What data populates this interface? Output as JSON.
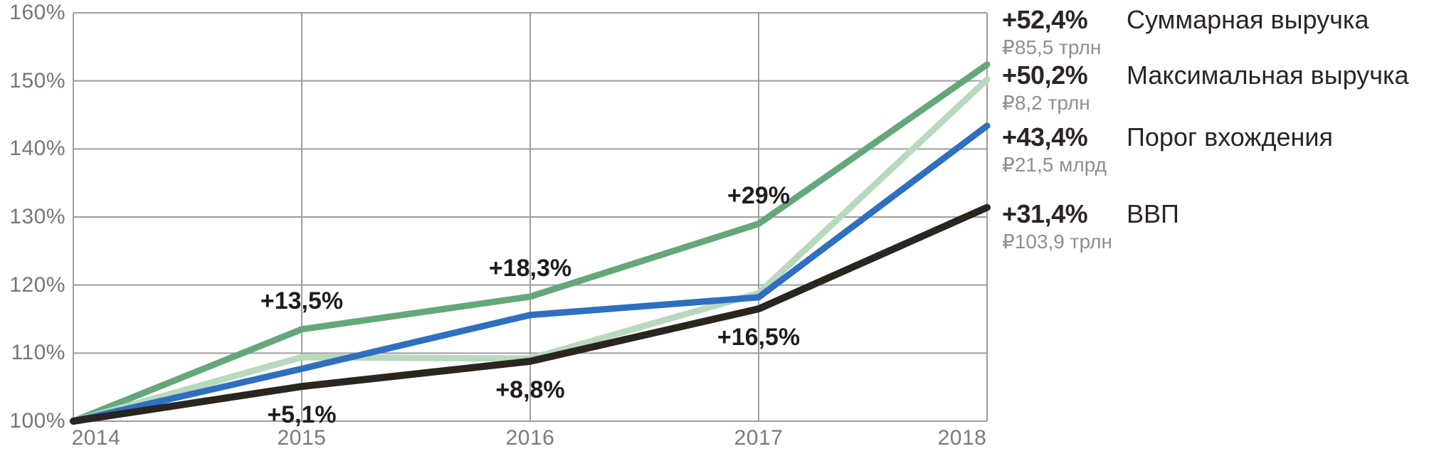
{
  "chart_data": {
    "type": "line",
    "x_labels": [
      "2014",
      "2015",
      "2016",
      "2017",
      "2018"
    ],
    "y_ticks": [
      "160%",
      "150%",
      "140%",
      "130%",
      "120%",
      "110%",
      "100%"
    ],
    "ylim": [
      100,
      160
    ],
    "grid": true,
    "legend_position": "right",
    "grid_color": "#9e9e9e",
    "series": [
      {
        "name": "Суммарная выручка",
        "color": "#64a77b",
        "values": [
          100,
          113.5,
          118.3,
          129,
          152.4
        ],
        "final_change": "+52,4%",
        "final_value": "₽85,5 трлн"
      },
      {
        "name": "Максимальная выручка",
        "color": "#b8d9be",
        "values": [
          100,
          109.4,
          109.2,
          118.8,
          150.2
        ],
        "final_change": "+50,2%",
        "final_value": "₽8,2 трлн"
      },
      {
        "name": "Порог вхождения",
        "color": "#2e6fc0",
        "values": [
          100,
          107.7,
          115.6,
          118.2,
          143.4
        ],
        "final_change": "+43,4%",
        "final_value": "₽21,5 млрд"
      },
      {
        "name": "ВВП",
        "color": "#2b2520",
        "values": [
          100,
          105.1,
          108.8,
          116.5,
          131.4
        ],
        "final_change": "+31,4%",
        "final_value": "₽103,9 трлн"
      }
    ],
    "annotations": [
      {
        "label": "+13,5%",
        "year": "2015",
        "series": "Суммарная выручка",
        "value": 113.5,
        "position": "above"
      },
      {
        "label": "+18,3%",
        "year": "2016",
        "series": "Суммарная выручка",
        "value": 118.3,
        "position": "above"
      },
      {
        "label": "+29%",
        "year": "2017",
        "series": "Суммарная выручка",
        "value": 129,
        "position": "above"
      },
      {
        "label": "+5,1%",
        "year": "2015",
        "series": "ВВП",
        "value": 105.1,
        "position": "below"
      },
      {
        "label": "+8,8%",
        "year": "2016",
        "series": "ВВП",
        "value": 108.8,
        "position": "below"
      },
      {
        "label": "+16,5%",
        "year": "2017",
        "series": "ВВП",
        "value": 116.5,
        "position": "below"
      }
    ]
  }
}
